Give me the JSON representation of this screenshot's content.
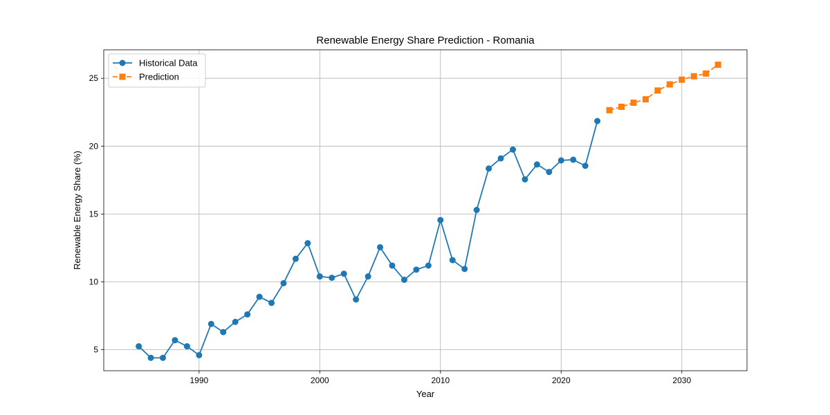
{
  "chart_data": {
    "type": "line",
    "title": "Renewable Energy Share Prediction - Romania",
    "xlabel": "Year",
    "ylabel": "Renewable Energy Share (%)",
    "xlim": [
      1982.1,
      2035.4
    ],
    "ylim": [
      3.45,
      27.1
    ],
    "x_ticks": [
      1990,
      2000,
      2010,
      2020,
      2030
    ],
    "y_ticks": [
      5,
      10,
      15,
      20,
      25
    ],
    "grid": true,
    "legend_position": "top-left",
    "series": [
      {
        "name": "Historical Data",
        "color": "#1f77b4",
        "line_style": "solid",
        "marker": "circle",
        "x": [
          1985,
          1986,
          1987,
          1988,
          1989,
          1990,
          1991,
          1992,
          1993,
          1994,
          1995,
          1996,
          1997,
          1998,
          1999,
          2000,
          2001,
          2002,
          2003,
          2004,
          2005,
          2006,
          2007,
          2008,
          2009,
          2010,
          2011,
          2012,
          2013,
          2014,
          2015,
          2016,
          2017,
          2018,
          2019,
          2020,
          2021,
          2022,
          2023
        ],
        "y": [
          5.25,
          4.4,
          4.4,
          5.7,
          5.25,
          4.6,
          6.9,
          6.3,
          7.05,
          7.6,
          8.9,
          8.45,
          9.9,
          11.7,
          12.85,
          10.4,
          10.3,
          10.6,
          8.7,
          10.4,
          12.55,
          11.2,
          10.15,
          10.9,
          11.2,
          14.55,
          11.6,
          10.95,
          15.3,
          18.35,
          19.1,
          19.75,
          17.55,
          18.65,
          18.1,
          18.95,
          19.0,
          18.55,
          21.85
        ]
      },
      {
        "name": "Prediction",
        "color": "#ff7f0e",
        "line_style": "dashed",
        "marker": "square",
        "x": [
          2024,
          2025,
          2026,
          2027,
          2028,
          2029,
          2030,
          2031,
          2032,
          2033
        ],
        "y": [
          22.65,
          22.9,
          23.2,
          23.45,
          24.1,
          24.55,
          24.9,
          25.15,
          25.35,
          26.0
        ]
      }
    ]
  }
}
